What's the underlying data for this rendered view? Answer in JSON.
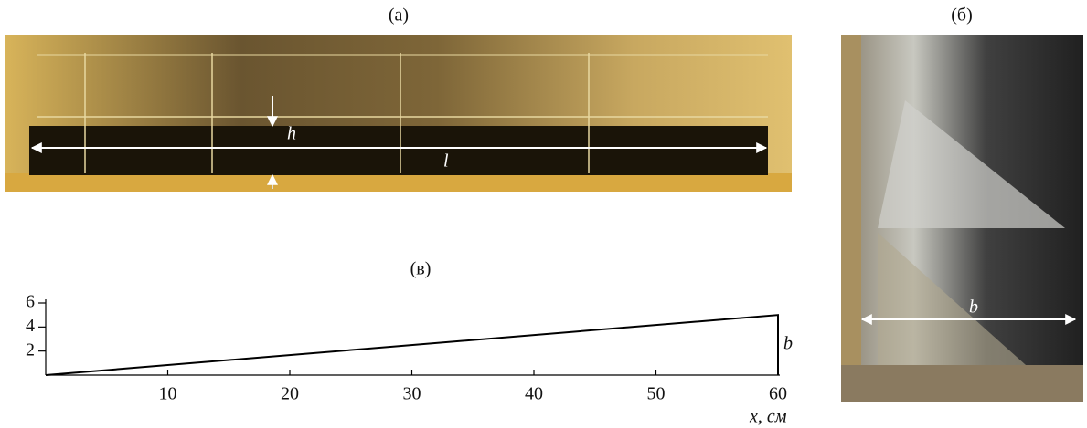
{
  "panels": {
    "a": {
      "label": "(а)",
      "h": "h",
      "l": "l"
    },
    "b": {
      "label": "(б)",
      "b": "b"
    }
  },
  "chart_data": {
    "type": "line",
    "title": "(в)",
    "x": [
      0,
      60,
      60
    ],
    "values": [
      0,
      5,
      0
    ],
    "color": "#000000",
    "xlim": [
      0,
      60
    ],
    "ylim": [
      0,
      6
    ],
    "xticks": [
      10,
      20,
      30,
      40,
      50,
      60
    ],
    "yticks": [
      2,
      4,
      6
    ],
    "xlabel": "x, см",
    "annotation": "b"
  }
}
